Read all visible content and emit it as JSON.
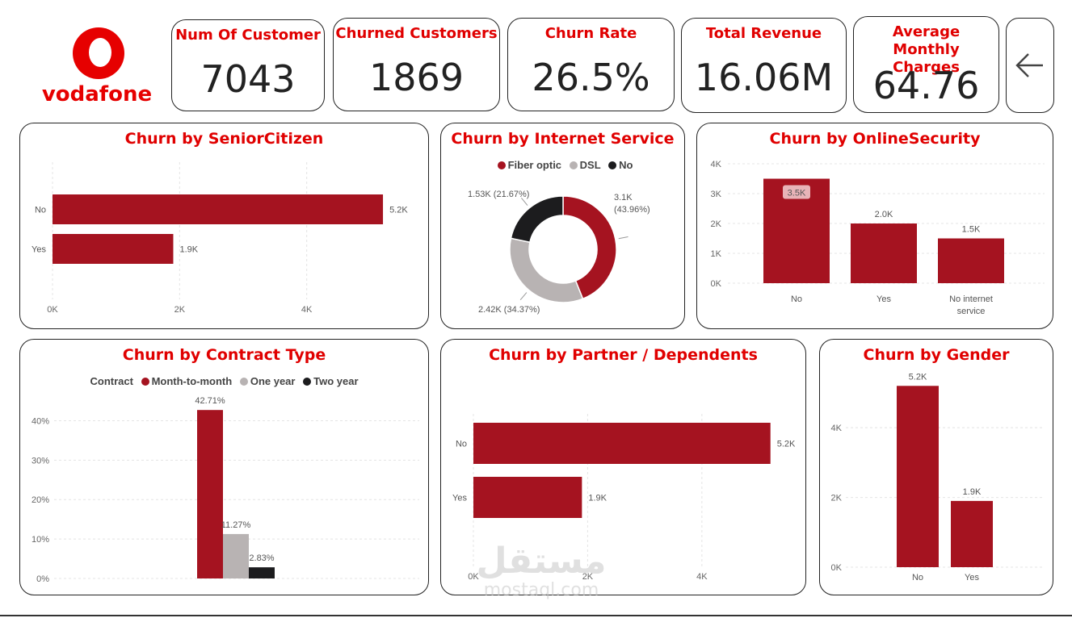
{
  "brand": {
    "name": "vodafone",
    "color": "#e60000"
  },
  "kpis": [
    {
      "title": "Num Of Customer",
      "value": "7043"
    },
    {
      "title": "Churned Customers",
      "value": "1869"
    },
    {
      "title": "Churn Rate",
      "value": "26.5%"
    },
    {
      "title": "Total Revenue",
      "value": "16.06M"
    },
    {
      "title": "Average Monthly Charges",
      "value": "64.76"
    }
  ],
  "nav": {
    "back_icon": "arrow-left-icon"
  },
  "colors": {
    "primary": "#a51320",
    "secondary": "#b8b3b3",
    "dark": "#1c1c1e",
    "title": "#e00000"
  },
  "watermark": {
    "arabic": "مستقل",
    "latin": "mostaql.com"
  },
  "chart_data": [
    {
      "id": "senior",
      "type": "bar",
      "orientation": "horizontal",
      "title": "Churn by SeniorCitizen",
      "categories": [
        "No",
        "Yes"
      ],
      "values": [
        5.2,
        1.9
      ],
      "labels": [
        "5.2K",
        "1.9K"
      ],
      "xlim": [
        0,
        6
      ],
      "ticks": [
        0,
        2,
        4
      ],
      "tick_labels": [
        "0K",
        "2K",
        "4K"
      ],
      "grid": true
    },
    {
      "id": "internet",
      "type": "pie",
      "donut": true,
      "title": "Churn by Internet Service",
      "legend": [
        "Fiber optic",
        "DSL",
        "No"
      ],
      "legend_colors": [
        "#a51320",
        "#b8b3b3",
        "#1c1c1e"
      ],
      "slices": [
        {
          "name": "Fiber optic",
          "value": 43.96,
          "label": "3.1K (43.96%)",
          "color": "#a51320"
        },
        {
          "name": "DSL",
          "value": 34.37,
          "label": "2.42K (34.37%)",
          "color": "#b8b3b3"
        },
        {
          "name": "No",
          "value": 21.67,
          "label": "1.53K (21.67%)",
          "color": "#1c1c1e"
        }
      ]
    },
    {
      "id": "security",
      "type": "bar",
      "title": "Churn by OnlineSecurity",
      "categories": [
        "No",
        "Yes",
        "No internet service"
      ],
      "values": [
        3.5,
        2.0,
        1.5
      ],
      "labels": [
        "3.5K",
        "2.0K",
        "1.5K"
      ],
      "ylim": [
        0,
        4
      ],
      "ticks": [
        0,
        1,
        2,
        3,
        4
      ],
      "tick_labels": [
        "0K",
        "1K",
        "2K",
        "3K",
        "4K"
      ],
      "grid": true
    },
    {
      "id": "contract",
      "type": "bar",
      "title": "Churn by Contract Type",
      "legend_title": "Contract",
      "legend": [
        "Month-to-month",
        "One year",
        "Two year"
      ],
      "legend_colors": [
        "#a51320",
        "#b8b3b3",
        "#1c1c1e"
      ],
      "values": [
        42.71,
        11.27,
        2.83
      ],
      "labels": [
        "42.71%",
        "11.27%",
        "2.83%"
      ],
      "ylim": [
        0,
        45
      ],
      "ticks": [
        0,
        10,
        20,
        30,
        40
      ],
      "tick_labels": [
        "0%",
        "10%",
        "20%",
        "30%",
        "40%"
      ],
      "grid": true
    },
    {
      "id": "partner",
      "type": "bar",
      "orientation": "horizontal",
      "title": "Churn by Partner / Dependents",
      "categories": [
        "No",
        "Yes"
      ],
      "values": [
        5.2,
        1.9
      ],
      "labels": [
        "5.2K",
        "1.9K"
      ],
      "xlim": [
        0,
        5.6
      ],
      "ticks": [
        0,
        2,
        4
      ],
      "tick_labels": [
        "0K",
        "2K",
        "4K"
      ],
      "grid": true
    },
    {
      "id": "gender",
      "type": "bar",
      "title": "Churn by Gender",
      "categories": [
        "No",
        "Yes"
      ],
      "values": [
        5.2,
        1.9
      ],
      "labels": [
        "5.2K",
        "1.9K"
      ],
      "ylim": [
        0,
        5.6
      ],
      "ticks": [
        0,
        2,
        4
      ],
      "tick_labels": [
        "0K",
        "2K",
        "4K"
      ],
      "grid": true
    }
  ]
}
